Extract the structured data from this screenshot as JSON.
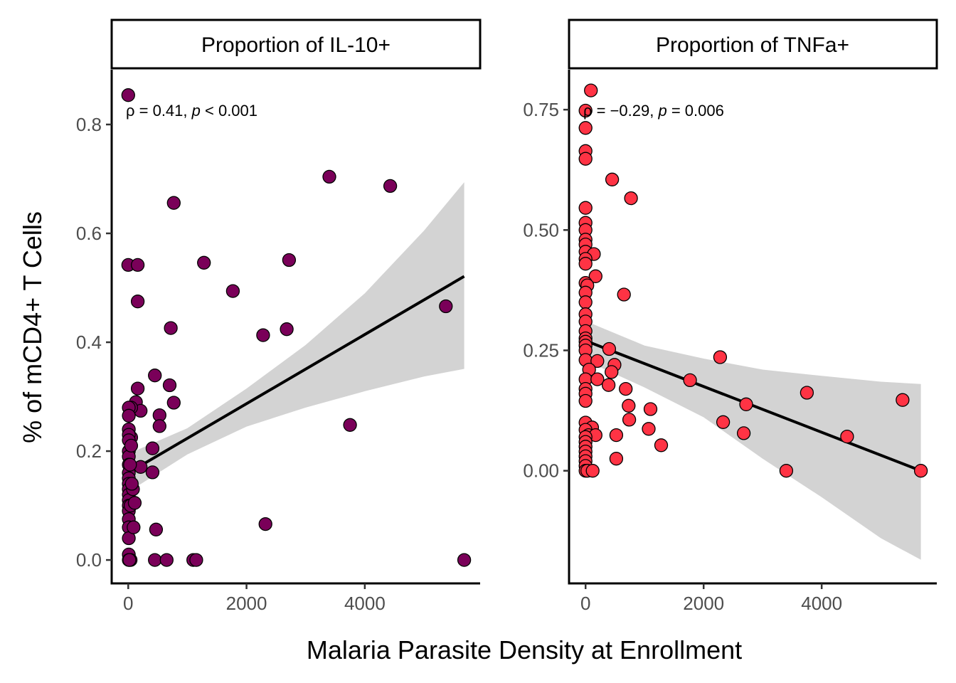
{
  "chart_data": {
    "type": "scatter",
    "xlabel": "Malaria Parasite Density at Enrollment",
    "ylabel": "% of mCD4+ T Cells",
    "colors": {
      "panel1": "#7a0059",
      "panel2": "#ff3344",
      "ribbon": "#d3d3d3",
      "line": "#000000"
    },
    "panels": [
      {
        "title": "Proportion of IL-10+",
        "annotation": {
          "rho": "ρ = 0.41, ",
          "p_sym": "p",
          "rest": " < 0.001"
        },
        "xlim": [
          -280,
          5950
        ],
        "ylim": [
          -0.043,
          0.898
        ],
        "xticks": [
          0,
          2000,
          4000
        ],
        "xtick_labels": [
          "0",
          "2000",
          "4000"
        ],
        "yticks": [
          0,
          0.2,
          0.4,
          0.6,
          0.8
        ],
        "ytick_labels": [
          "0.0",
          "0.2",
          "0.4",
          "0.6",
          "0.8"
        ],
        "fit": {
          "x0": 0,
          "y0": 0.16,
          "x1": 5680,
          "y1": 0.521
        },
        "ribbon_upper": [
          [
            0,
            0.195
          ],
          [
            1000,
            0.242
          ],
          [
            2000,
            0.315
          ],
          [
            3000,
            0.395
          ],
          [
            4000,
            0.49
          ],
          [
            5000,
            0.605
          ],
          [
            5680,
            0.694
          ]
        ],
        "ribbon_lower": [
          [
            0,
            0.125
          ],
          [
            1000,
            0.194
          ],
          [
            2000,
            0.245
          ],
          [
            3000,
            0.28
          ],
          [
            4000,
            0.31
          ],
          [
            5000,
            0.337
          ],
          [
            5680,
            0.351
          ]
        ],
        "points": [
          [
            0,
            0.854
          ],
          [
            0,
            0.542
          ],
          [
            160,
            0.542
          ],
          [
            160,
            0.475
          ],
          [
            770,
            0.656
          ],
          [
            1280,
            0.546
          ],
          [
            1770,
            0.494
          ],
          [
            2720,
            0.551
          ],
          [
            3400,
            0.704
          ],
          [
            4430,
            0.687
          ],
          [
            5370,
            0.466
          ],
          [
            720,
            0.426
          ],
          [
            2280,
            0.413
          ],
          [
            2680,
            0.424
          ],
          [
            3750,
            0.248
          ],
          [
            2320,
            0.066
          ],
          [
            5680,
            0.0
          ],
          [
            1100,
            0.0
          ],
          [
            1150,
            0.0
          ],
          [
            450,
            0.0
          ],
          [
            650,
            0.0
          ],
          [
            470,
            0.056
          ],
          [
            450,
            0.339
          ],
          [
            700,
            0.321
          ],
          [
            770,
            0.289
          ],
          [
            160,
            0.315
          ],
          [
            130,
            0.29
          ],
          [
            210,
            0.274
          ],
          [
            530,
            0.266
          ],
          [
            530,
            0.246
          ],
          [
            410,
            0.205
          ],
          [
            410,
            0.161
          ],
          [
            210,
            0.171
          ],
          [
            50,
            0.28
          ],
          [
            50,
            0.225
          ],
          [
            10,
            0.28
          ],
          [
            10,
            0.265
          ],
          [
            10,
            0.24
          ],
          [
            10,
            0.23
          ],
          [
            10,
            0.22
          ],
          [
            10,
            0.2
          ],
          [
            10,
            0.19
          ],
          [
            10,
            0.175
          ],
          [
            10,
            0.16
          ],
          [
            10,
            0.15
          ],
          [
            10,
            0.14
          ],
          [
            10,
            0.13
          ],
          [
            10,
            0.12
          ],
          [
            10,
            0.11
          ],
          [
            10,
            0.1
          ],
          [
            10,
            0.09
          ],
          [
            10,
            0.075
          ],
          [
            10,
            0.06
          ],
          [
            10,
            0.04
          ],
          [
            10,
            0.01
          ],
          [
            10,
            0.0
          ],
          [
            40,
            0.0
          ],
          [
            40,
            0.1
          ],
          [
            80,
            0.13
          ],
          [
            110,
            0.105
          ],
          [
            90,
            0.06
          ],
          [
            60,
            0.14
          ],
          [
            20,
            0.0
          ],
          [
            50,
            0.21
          ],
          [
            30,
            0.175
          ]
        ]
      },
      {
        "title": "Proportion of TNFa+",
        "annotation": {
          "rho": "ρ = −0.29, ",
          "p_sym": "p",
          "rest": " = 0.006"
        },
        "xlim": [
          -280,
          5950
        ],
        "ylim": [
          -0.234,
          0.83
        ],
        "xticks": [
          0,
          2000,
          4000
        ],
        "xtick_labels": [
          "0",
          "2000",
          "4000"
        ],
        "yticks": [
          0,
          0.25,
          0.5,
          0.75
        ],
        "ytick_labels": [
          "0.00",
          "0.25",
          "0.50",
          "0.75"
        ],
        "fit": {
          "x0": 0,
          "y0": 0.27,
          "x1": 5680,
          "y1": 0.0
        },
        "ribbon_upper": [
          [
            0,
            0.311
          ],
          [
            1000,
            0.26
          ],
          [
            2000,
            0.233
          ],
          [
            3000,
            0.21
          ],
          [
            4000,
            0.197
          ],
          [
            5000,
            0.185
          ],
          [
            5680,
            0.18
          ]
        ],
        "ribbon_lower": [
          [
            0,
            0.229
          ],
          [
            1000,
            0.173
          ],
          [
            2000,
            0.111
          ],
          [
            3000,
            0.025
          ],
          [
            4000,
            -0.055
          ],
          [
            5000,
            -0.14
          ],
          [
            5680,
            -0.185
          ]
        ],
        "points": [
          [
            90,
            0.79
          ],
          [
            0,
            0.748
          ],
          [
            0,
            0.712
          ],
          [
            0,
            0.664
          ],
          [
            0,
            0.648
          ],
          [
            450,
            0.605
          ],
          [
            770,
            0.566
          ],
          [
            0,
            0.546
          ],
          [
            0,
            0.515
          ],
          [
            0,
            0.5
          ],
          [
            0,
            0.48
          ],
          [
            0,
            0.47
          ],
          [
            0,
            0.455
          ],
          [
            140,
            0.45
          ],
          [
            0,
            0.44
          ],
          [
            0,
            0.43
          ],
          [
            170,
            0.404
          ],
          [
            0,
            0.39
          ],
          [
            30,
            0.385
          ],
          [
            0,
            0.37
          ],
          [
            650,
            0.366
          ],
          [
            0,
            0.35
          ],
          [
            0,
            0.325
          ],
          [
            0,
            0.31
          ],
          [
            0,
            0.29
          ],
          [
            0,
            0.275
          ],
          [
            0,
            0.268
          ],
          [
            0,
            0.26
          ],
          [
            0,
            0.25
          ],
          [
            400,
            0.253
          ],
          [
            2280,
            0.236
          ],
          [
            0,
            0.23
          ],
          [
            200,
            0.228
          ],
          [
            490,
            0.22
          ],
          [
            60,
            0.21
          ],
          [
            440,
            0.205
          ],
          [
            0,
            0.19
          ],
          [
            200,
            0.19
          ],
          [
            390,
            0.178
          ],
          [
            1770,
            0.188
          ],
          [
            0,
            0.17
          ],
          [
            680,
            0.17
          ],
          [
            3750,
            0.162
          ],
          [
            0,
            0.16
          ],
          [
            0,
            0.145
          ],
          [
            5370,
            0.147
          ],
          [
            2720,
            0.138
          ],
          [
            730,
            0.135
          ],
          [
            1100,
            0.128
          ],
          [
            740,
            0.106
          ],
          [
            2330,
            0.101
          ],
          [
            0,
            0.1
          ],
          [
            110,
            0.09
          ],
          [
            0,
            0.085
          ],
          [
            1070,
            0.087
          ],
          [
            2680,
            0.078
          ],
          [
            4430,
            0.071
          ],
          [
            50,
            0.074
          ],
          [
            520,
            0.074
          ],
          [
            170,
            0.074
          ],
          [
            0,
            0.07
          ],
          [
            0,
            0.06
          ],
          [
            0,
            0.05
          ],
          [
            0,
            0.04
          ],
          [
            0,
            0.03
          ],
          [
            1280,
            0.053
          ],
          [
            520,
            0.025
          ],
          [
            0,
            0.02
          ],
          [
            0,
            0.01
          ],
          [
            0,
            0.0
          ],
          [
            30,
            0.0
          ],
          [
            120,
            0.0
          ],
          [
            3400,
            0.0
          ],
          [
            5680,
            0.0
          ]
        ]
      }
    ]
  }
}
